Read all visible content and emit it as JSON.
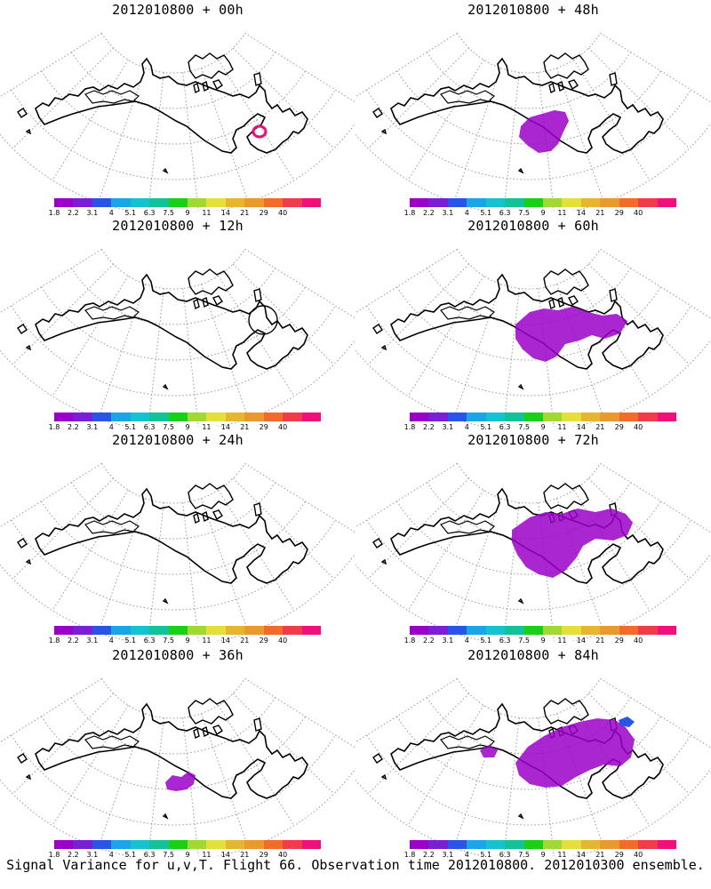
{
  "figure_title": "Signal Variance for u,v,T. Flight 66. Observation time 2012010800. 2012010300 ensemble.",
  "colorbar": {
    "colors": [
      "#9b00c9",
      "#7a1fd6",
      "#2a53e8",
      "#1aa6e6",
      "#13c4d0",
      "#12c39a",
      "#18d018",
      "#a1d834",
      "#e3e03a",
      "#e6b630",
      "#e89a2e",
      "#f26b2a",
      "#f03c4a",
      "#f0107c"
    ],
    "labels": [
      "1.8",
      "2.2",
      "3.1",
      "4",
      "5.1",
      "6.3",
      "7.5",
      "9",
      "11",
      "14",
      "21",
      "29",
      "40"
    ]
  },
  "panels": [
    {
      "title": "2012010800 + 00h",
      "signal": "ring-marker"
    },
    {
      "title": "2012010800 + 48h",
      "signal": "purple-patch-small"
    },
    {
      "title": "2012010800 + 12h",
      "signal": "circle-outline"
    },
    {
      "title": "2012010800 + 60h",
      "signal": "purple-patch-medium"
    },
    {
      "title": "2012010800 + 24h",
      "signal": "none"
    },
    {
      "title": "2012010800 + 72h",
      "signal": "purple-patch-large"
    },
    {
      "title": "2012010800 + 36h",
      "signal": "purple-blob-tiny"
    },
    {
      "title": "2012010800 + 84h",
      "signal": "purple-patch-xlarge"
    }
  ]
}
